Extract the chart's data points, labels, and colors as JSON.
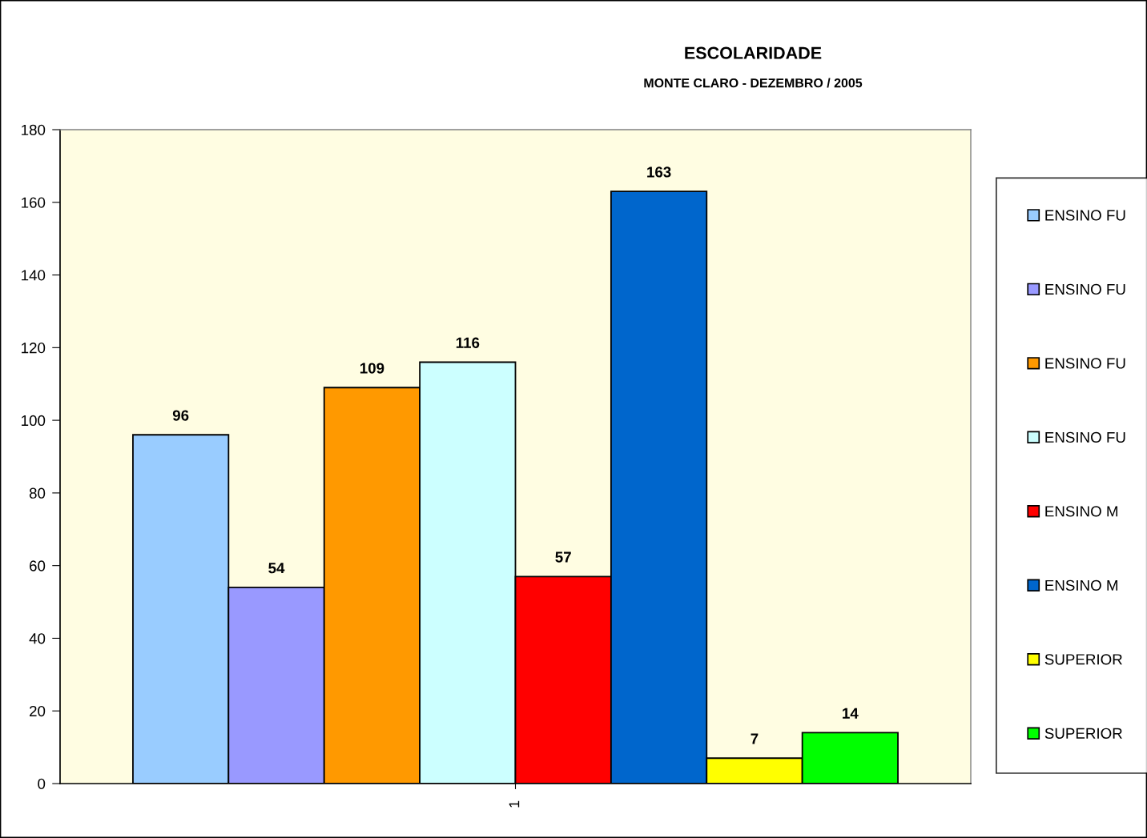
{
  "chart_data": {
    "type": "bar",
    "title": "ESCOLARIDADE",
    "subtitle": "MONTE CLARO - DEZEMBRO / 2005",
    "categories": [
      "1"
    ],
    "series": [
      {
        "name": "ENSINO FU",
        "color": "#99ccff",
        "values": [
          96
        ]
      },
      {
        "name": "ENSINO FU",
        "color": "#9999ff",
        "values": [
          54
        ]
      },
      {
        "name": "ENSINO FU",
        "color": "#ff9900",
        "values": [
          109
        ]
      },
      {
        "name": "ENSINO FU",
        "color": "#ccffff",
        "values": [
          116
        ]
      },
      {
        "name": "ENSINO M",
        "color": "#ff0000",
        "values": [
          57
        ]
      },
      {
        "name": "ENSINO M",
        "color": "#0066cc",
        "values": [
          163
        ]
      },
      {
        "name": "SUPERIOR",
        "color": "#ffff00",
        "values": [
          7
        ]
      },
      {
        "name": "SUPERIOR",
        "color": "#00ff00",
        "values": [
          14
        ]
      }
    ],
    "ylim": [
      0,
      180
    ],
    "yticks": [
      0,
      20,
      40,
      60,
      80,
      100,
      120,
      140,
      160,
      180
    ],
    "data_labels": true,
    "legend": "right",
    "grid": false
  }
}
